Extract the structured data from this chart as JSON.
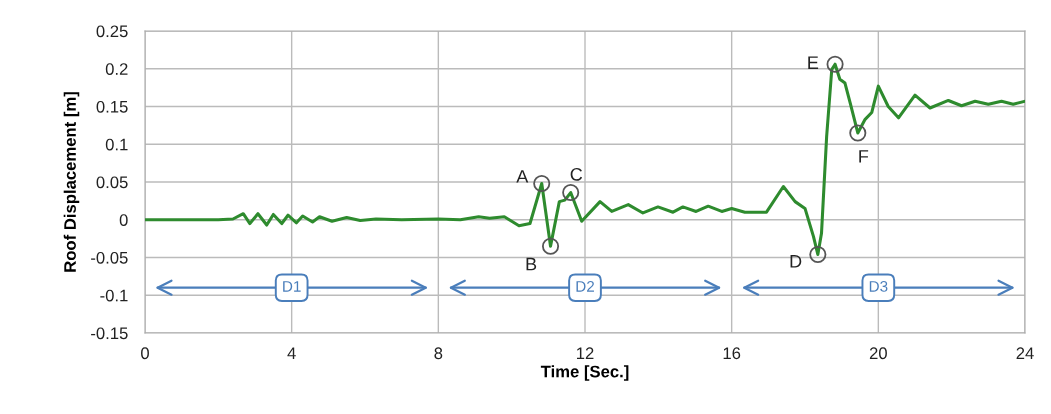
{
  "chart_data": {
    "type": "line",
    "xlabel": "Time [Sec.]",
    "ylabel": "Roof Displacement [m]",
    "xlim": [
      0,
      24
    ],
    "xticks": [
      0,
      4,
      8,
      12,
      16,
      20,
      24
    ],
    "ylim": [
      -0.15,
      0.25
    ],
    "yticks": [
      -0.15,
      -0.1,
      -0.05,
      0,
      0.05,
      0.1,
      0.15,
      0.2,
      0.25
    ],
    "grid": true,
    "line_style": "solid",
    "marker": "none",
    "series": [
      {
        "color": "#2e8b2e",
        "x": [
          0,
          1,
          2,
          2.4,
          2.68,
          2.86,
          3.08,
          3.32,
          3.5,
          3.73,
          3.9,
          4.13,
          4.3,
          4.57,
          4.76,
          5.1,
          5.5,
          5.87,
          6.3,
          7,
          8,
          8.6,
          9.1,
          9.4,
          9.8,
          10.2,
          10.5,
          10.82,
          11.06,
          11.3,
          11.45,
          11.61,
          11.91,
          12.41,
          12.73,
          13.18,
          13.58,
          13.99,
          14.4,
          14.67,
          15.03,
          15.36,
          15.73,
          16.0,
          16.36,
          16.95,
          17.41,
          17.73,
          18.0,
          18.23,
          18.35,
          18.45,
          18.59,
          18.73,
          18.82,
          18.95,
          19.09,
          19.23,
          19.44,
          19.64,
          19.82,
          20.0,
          20.27,
          20.55,
          21.0,
          21.41,
          21.91,
          22.27,
          22.64,
          23.0,
          23.36,
          23.68,
          24.0
        ],
        "values": [
          0,
          0,
          0,
          0.001,
          0.008,
          -0.005,
          0.008,
          -0.007,
          0.007,
          -0.005,
          0.006,
          -0.004,
          0.005,
          -0.003,
          0.004,
          -0.002,
          0.003,
          -0.001,
          0.001,
          0,
          0.001,
          0,
          0.004,
          0.002,
          0.004,
          -0.008,
          -0.005,
          0.048,
          -0.035,
          0.024,
          0.026,
          0.036,
          -0.002,
          0.024,
          0.011,
          0.02,
          0.009,
          0.017,
          0.01,
          0.017,
          0.011,
          0.018,
          0.011,
          0.015,
          0.01,
          0.01,
          0.044,
          0.024,
          0.015,
          -0.022,
          -0.046,
          -0.018,
          0.11,
          0.199,
          0.206,
          0.186,
          0.181,
          0.155,
          0.115,
          0.133,
          0.142,
          0.177,
          0.15,
          0.135,
          0.165,
          0.148,
          0.158,
          0.151,
          0.157,
          0.153,
          0.157,
          0.153,
          0.157
        ]
      }
    ],
    "annotations": [
      {
        "text": "A",
        "x": 10.82,
        "y": 0.048
      },
      {
        "text": "B",
        "x": 11.06,
        "y": -0.035
      },
      {
        "text": "C",
        "x": 11.61,
        "y": 0.036
      },
      {
        "text": "D",
        "x": 18.35,
        "y": -0.046
      },
      {
        "text": "E",
        "x": 18.82,
        "y": 0.206
      },
      {
        "text": "F",
        "x": 19.44,
        "y": 0.115
      },
      {
        "text": "D1",
        "x": 4,
        "y": -0.09
      },
      {
        "text": "D2",
        "x": 12,
        "y": -0.09
      },
      {
        "text": "D3",
        "x": 20,
        "y": -0.09
      }
    ]
  }
}
